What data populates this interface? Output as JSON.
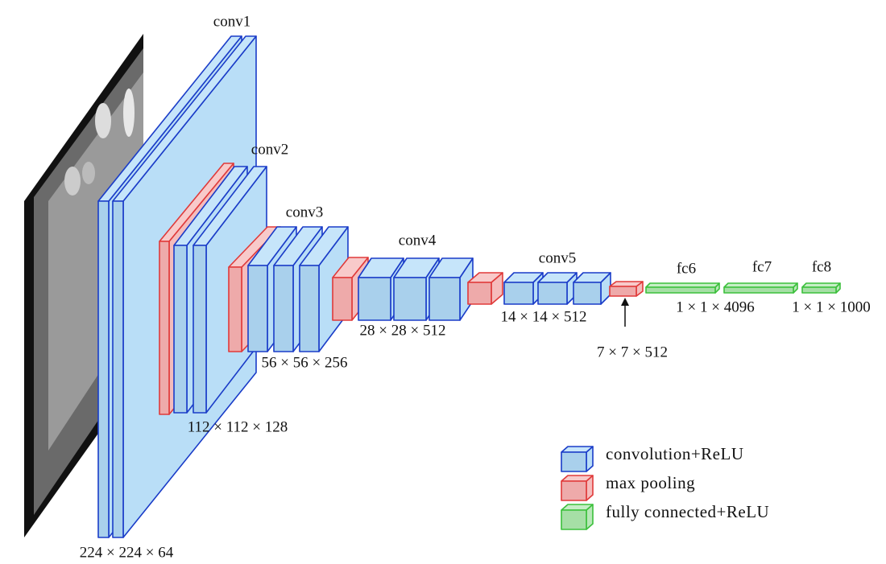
{
  "blocks": [
    {
      "label": "conv1"
    },
    {
      "label": "conv2"
    },
    {
      "label": "conv3"
    },
    {
      "label": "conv4"
    },
    {
      "label": "conv5"
    },
    {
      "label": "fc6"
    },
    {
      "label": "fc7"
    },
    {
      "label": "fc8"
    }
  ],
  "dimensions": [
    "224 × 224 × 64",
    "112 × 112 × 128",
    "56 × 56 × 256",
    "28 × 28 × 512",
    "14 × 14 × 512",
    "7 × 7 × 512",
    "1 × 1 × 4096",
    "1 × 1 × 1000"
  ],
  "legend": [
    {
      "label": "convolution+ReLU"
    },
    {
      "label": "max pooling"
    },
    {
      "label": "fully connected+ReLU"
    }
  ]
}
